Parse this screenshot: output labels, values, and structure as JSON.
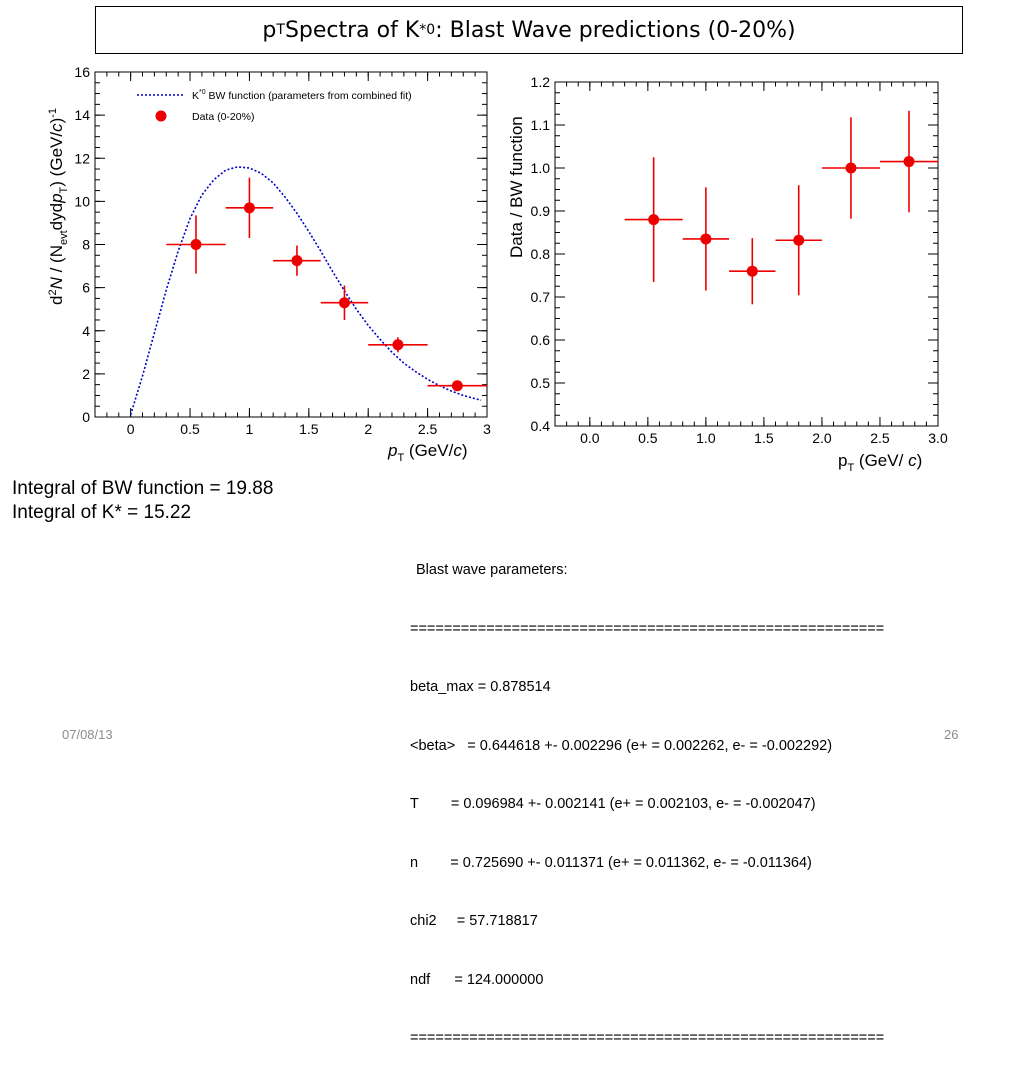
{
  "title": {
    "p": "p",
    "p_sub": "T",
    "mid": " Spectra of K",
    "sup": "*0",
    "rest": ": Blast Wave predictions (0-20%)"
  },
  "chart_data": [
    {
      "type": "scatter",
      "ylabel": "d²N / (N_evt dydp_T) (GeV/c)⁻¹",
      "xlabel": "p_T (GeV/c)",
      "xlim": [
        -0.3,
        3.0
      ],
      "ylim": [
        0,
        16
      ],
      "xticks": [
        "0",
        "0.5",
        "1",
        "1.5",
        "2",
        "2.5",
        "3"
      ],
      "xtick_values": [
        0,
        0.5,
        1,
        1.5,
        2,
        2.5,
        3
      ],
      "yticks": [
        "0",
        "2",
        "4",
        "6",
        "8",
        "10",
        "12",
        "14",
        "16"
      ],
      "ytick_values": [
        0,
        2,
        4,
        6,
        8,
        10,
        12,
        14,
        16
      ],
      "legend": {
        "placement": "top",
        "items": [
          {
            "label": "K*0 BW function (parameters from combined fit)",
            "style": "dotted-line",
            "color": "#0000cc"
          },
          {
            "label": "Data (0-20%)",
            "style": "marker",
            "color": "#ee0000"
          }
        ]
      },
      "series": [
        {
          "name": "Data (0-20%)",
          "color": "#ee0000",
          "points": [
            {
              "x": 0.55,
              "y": 8.0,
              "xerr": 0.25,
              "yerr": 1.35
            },
            {
              "x": 1.0,
              "y": 9.7,
              "xerr": 0.2,
              "yerr": 1.4
            },
            {
              "x": 1.4,
              "y": 7.25,
              "xerr": 0.2,
              "yerr": 0.7
            },
            {
              "x": 1.8,
              "y": 5.3,
              "xerr": 0.2,
              "yerr": 0.8
            },
            {
              "x": 2.25,
              "y": 3.35,
              "xerr": 0.25,
              "yerr": 0.35
            },
            {
              "x": 2.75,
              "y": 1.45,
              "xerr": 0.25,
              "yerr": 0.15
            }
          ]
        },
        {
          "name": "K*0 BW function (parameters from combined fit)",
          "color": "#0000cc",
          "style": "dotted",
          "x": [
            0.0,
            0.1,
            0.2,
            0.3,
            0.4,
            0.5,
            0.6,
            0.7,
            0.8,
            0.9,
            1.0,
            1.1,
            1.2,
            1.3,
            1.4,
            1.5,
            1.6,
            1.7,
            1.8,
            1.9,
            2.0,
            2.1,
            2.2,
            2.3,
            2.4,
            2.5,
            2.6,
            2.7,
            2.8,
            2.9,
            2.95
          ],
          "y": [
            0.1,
            1.9,
            3.9,
            5.9,
            7.7,
            9.2,
            10.3,
            11.0,
            11.45,
            11.6,
            11.55,
            11.3,
            10.85,
            10.2,
            9.45,
            8.6,
            7.7,
            6.75,
            5.85,
            5.0,
            4.25,
            3.6,
            3.0,
            2.5,
            2.1,
            1.75,
            1.45,
            1.2,
            1.0,
            0.85,
            0.78
          ]
        }
      ]
    },
    {
      "type": "scatter",
      "ylabel": "Data / BW function",
      "xlabel": "p_T (GeV/c)",
      "xlim": [
        -0.3,
        3.0
      ],
      "ylim": [
        0.4,
        1.2
      ],
      "xticks": [
        "0.0",
        "0.5",
        "1.0",
        "1.5",
        "2.0",
        "2.5",
        "3.0"
      ],
      "xtick_values": [
        0,
        0.5,
        1,
        1.5,
        2,
        2.5,
        3
      ],
      "yticks": [
        "0.4",
        "0.5",
        "0.6",
        "0.7",
        "0.8",
        "0.9",
        "1.0",
        "1.1",
        "1.2"
      ],
      "ytick_values": [
        0.4,
        0.5,
        0.6,
        0.7,
        0.8,
        0.9,
        1.0,
        1.1,
        1.2
      ],
      "series": [
        {
          "color": "#ee0000",
          "points": [
            {
              "x": 0.55,
              "y": 0.88,
              "xerr": 0.25,
              "yerr": 0.145
            },
            {
              "x": 1.0,
              "y": 0.835,
              "xerr": 0.2,
              "yerr": 0.12
            },
            {
              "x": 1.4,
              "y": 0.76,
              "xerr": 0.2,
              "yerr": 0.077
            },
            {
              "x": 1.8,
              "y": 0.832,
              "xerr": 0.2,
              "yerr": 0.128
            },
            {
              "x": 2.25,
              "y": 1.0,
              "xerr": 0.25,
              "yerr": 0.118
            },
            {
              "x": 2.75,
              "y": 1.015,
              "xerr": 0.25,
              "yerr": 0.118
            }
          ]
        }
      ]
    }
  ],
  "integrals": {
    "line1": "Integral of BW function = 19.88",
    "line2": "Integral of K* = 15.22"
  },
  "params": {
    "header": "Blast wave parameters:",
    "sep": "========================================================",
    "lines": [
      "beta_max = 0.878514",
      "<beta>   = 0.644618 +- 0.002296 (e+ = 0.002262, e- = -0.002292)",
      "T        = 0.096984 +- 0.002141 (e+ = 0.002103, e- = -0.002047)",
      "n        = 0.725690 +- 0.011371 (e+ = 0.011362, e- = -0.011364)",
      "chi2     = 57.718817",
      "ndf      = 124.000000"
    ]
  },
  "footer": {
    "date": "07/08/13",
    "page": "26"
  }
}
